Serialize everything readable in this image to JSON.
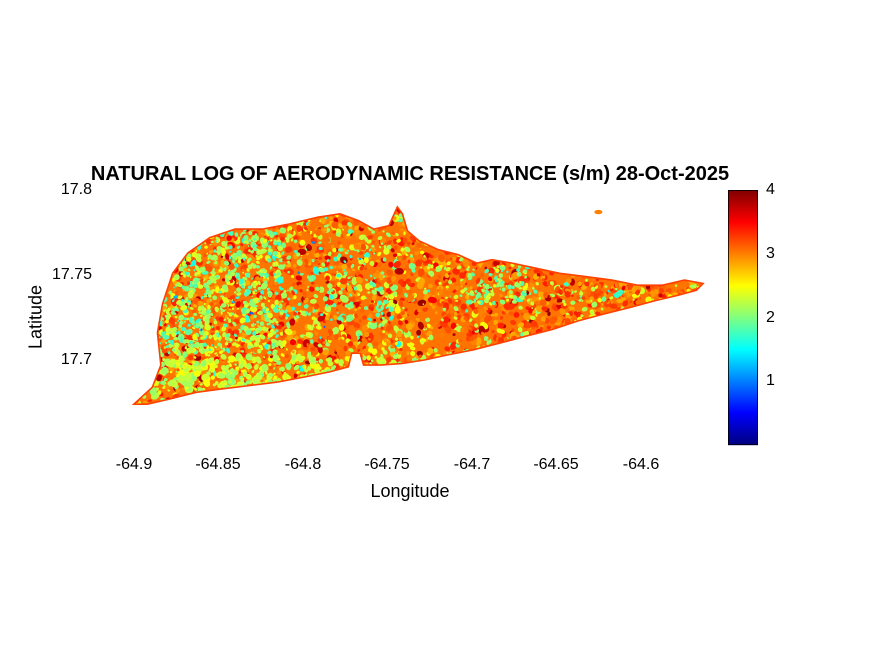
{
  "colors": {
    "background": "#ffffff",
    "text": "#000000"
  },
  "chart_data": {
    "type": "heatmap",
    "title": "NATURAL LOG OF AERODYNAMIC RESISTANCE (s/m) 28-Oct-2025",
    "date_label": "28-Oct-2025",
    "units": "s/m",
    "xlabel": "Longitude",
    "ylabel": "Latitude",
    "x_ticks": [
      "-64.9",
      "-64.85",
      "-64.8",
      "-64.75",
      "-64.7",
      "-64.65",
      "-64.6"
    ],
    "y_ticks": [
      "17.7",
      "17.75",
      "17.8"
    ],
    "xlim": [
      -64.92,
      -64.553
    ],
    "ylim": [
      17.65,
      17.8
    ],
    "grid": false,
    "colormap": "jet",
    "colorbar": {
      "position": "right",
      "range": [
        0,
        4
      ],
      "tick_labels": [
        "1",
        "2",
        "3",
        "4"
      ],
      "gradient_stops": [
        "#00008f",
        "#0000ff",
        "#00ffff",
        "#80ff80",
        "#ffff00",
        "#ff8000",
        "#ff0000",
        "#800000"
      ]
    },
    "value_summary": {
      "dominant_range": [
        2.8,
        3.5
      ],
      "secondary_range": [
        2.0,
        2.5
      ],
      "sparse_low_range": [
        1.5,
        2.0
      ],
      "description": "Island raster mostly orange-red (ln Ra ~ 2.8-3.5) with scattered yellow-green (~2.0-2.5) and cyan (~1.5-2.0) speckles, denser in the west and along the south coast; a small islet appears near the top right of the landmass."
    },
    "island_outline_lonlat": [
      [
        -64.9,
        17.674
      ],
      [
        -64.889,
        17.684
      ],
      [
        -64.884,
        17.697
      ],
      [
        -64.886,
        17.716
      ],
      [
        -64.883,
        17.733
      ],
      [
        -64.877,
        17.751
      ],
      [
        -64.868,
        17.763
      ],
      [
        -64.855,
        17.772
      ],
      [
        -64.84,
        17.777
      ],
      [
        -64.824,
        17.777
      ],
      [
        -64.808,
        17.78
      ],
      [
        -64.791,
        17.784
      ],
      [
        -64.778,
        17.786
      ],
      [
        -64.767,
        17.782
      ],
      [
        -64.758,
        17.777
      ],
      [
        -64.749,
        17.779
      ],
      [
        -64.744,
        17.79
      ],
      [
        -64.741,
        17.786
      ],
      [
        -64.738,
        17.776
      ],
      [
        -64.731,
        17.77
      ],
      [
        -64.72,
        17.765
      ],
      [
        -64.708,
        17.762
      ],
      [
        -64.697,
        17.757
      ],
      [
        -64.688,
        17.759
      ],
      [
        -64.676,
        17.757
      ],
      [
        -64.662,
        17.754
      ],
      [
        -64.648,
        17.751
      ],
      [
        -64.632,
        17.749
      ],
      [
        -64.617,
        17.747
      ],
      [
        -64.602,
        17.744
      ],
      [
        -64.587,
        17.744
      ],
      [
        -64.574,
        17.747
      ],
      [
        -64.563,
        17.745
      ],
      [
        -64.567,
        17.741
      ],
      [
        -64.578,
        17.738
      ],
      [
        -64.591,
        17.735
      ],
      [
        -64.606,
        17.731
      ],
      [
        -64.622,
        17.727
      ],
      [
        -64.637,
        17.723
      ],
      [
        -64.652,
        17.718
      ],
      [
        -64.668,
        17.714
      ],
      [
        -64.683,
        17.71
      ],
      [
        -64.699,
        17.706
      ],
      [
        -64.714,
        17.703
      ],
      [
        -64.728,
        17.7
      ],
      [
        -64.741,
        17.698
      ],
      [
        -64.754,
        17.697
      ],
      [
        -64.764,
        17.697
      ],
      [
        -64.766,
        17.704
      ],
      [
        -64.771,
        17.704
      ],
      [
        -64.773,
        17.696
      ],
      [
        -64.784,
        17.693
      ],
      [
        -64.799,
        17.69
      ],
      [
        -64.815,
        17.687
      ],
      [
        -64.831,
        17.685
      ],
      [
        -64.848,
        17.683
      ],
      [
        -64.863,
        17.681
      ],
      [
        -64.879,
        17.677
      ],
      [
        -64.892,
        17.674
      ]
    ],
    "satellite_islet_lonlat": [
      -64.625,
      17.787
    ]
  }
}
